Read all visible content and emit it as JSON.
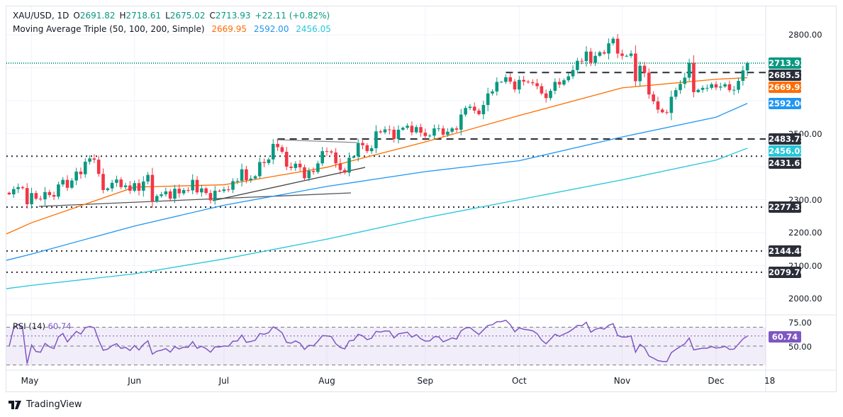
{
  "header": {
    "symbol": "XAU/USD, 1D",
    "open_label": "O",
    "open": "2691.82",
    "high_label": "H",
    "high": "2718.61",
    "low_label": "L",
    "low": "2675.02",
    "close_label": "C",
    "close": "2713.93",
    "change": "+22.11 (+0.82%)"
  },
  "indicator": {
    "name": "Moving Average Triple (50, 100, 200, Simple)",
    "ma50": "2669.95",
    "ma100": "2592.00",
    "ma200": "2456.05"
  },
  "colors": {
    "up": "#089981",
    "down": "#F23645",
    "ma50": "#FF6D00",
    "ma100": "#2196F3",
    "ma200": "#26C6DA",
    "rsi": "#7E57C2",
    "level": "#131722"
  },
  "price_axis": {
    "ticks": [
      "2800.00",
      "2500.00",
      "2300.00",
      "2200.00",
      "2100.00",
      "2000.00"
    ]
  },
  "price_tags": [
    {
      "value": "2713.93",
      "color": "#089981"
    },
    {
      "value": "2685.51",
      "color": "#2A2E39"
    },
    {
      "value": "2669.95",
      "color": "#FF6D00"
    },
    {
      "value": "2592.00",
      "color": "#2196F3"
    },
    {
      "value": "2483.75",
      "color": "#2A2E39"
    },
    {
      "value": "2456.05",
      "color": "#26C6DA"
    },
    {
      "value": "2431.61",
      "color": "#2A2E39"
    },
    {
      "value": "2277.31",
      "color": "#2A2E39"
    },
    {
      "value": "2144.48",
      "color": "#2A2E39"
    },
    {
      "value": "2079.76",
      "color": "#2A2E39"
    }
  ],
  "levels": [
    {
      "price": 2713.93,
      "style": "dotted",
      "color": "#089981"
    },
    {
      "price": 2685.51,
      "style": "dashed",
      "color": "#2A2E39"
    },
    {
      "price": 2483.75,
      "style": "dashed",
      "color": "#2A2E39"
    },
    {
      "price": 2431.61,
      "style": "dotted",
      "color": "#2A2E39"
    },
    {
      "price": 2277.31,
      "style": "dotted",
      "color": "#2A2E39"
    },
    {
      "price": 2144.48,
      "style": "dotted",
      "color": "#2A2E39"
    },
    {
      "price": 2079.76,
      "style": "dotted",
      "color": "#2A2E39"
    }
  ],
  "time_axis": [
    "May",
    "Jun",
    "Jul",
    "Aug",
    "Sep",
    "Oct",
    "Nov",
    "Dec",
    "18"
  ],
  "rsi": {
    "label": "RSI (14)",
    "value": "60.74",
    "ticks": [
      "75.00",
      "50.00"
    ],
    "levels": [
      70,
      50,
      30
    ],
    "range": [
      20,
      85
    ]
  },
  "branding": "TradingView",
  "chart_data": {
    "type": "candlestick",
    "symbol": "XAU/USD",
    "interval": "1D",
    "ylim": [
      1960,
      2830
    ],
    "closes_by_month": {
      "Apr": [
        2316,
        2332,
        2338,
        2335,
        2286
      ],
      "May": [
        2320,
        2303,
        2301,
        2323,
        2314,
        2309,
        2346,
        2360,
        2336,
        2358,
        2385,
        2377,
        2415,
        2425,
        2421,
        2378,
        2329,
        2334,
        2351,
        2361,
        2338,
        2343,
        2327
      ],
      "Jun": [
        2350,
        2327,
        2355,
        2375,
        2294,
        2311,
        2316,
        2325,
        2303,
        2333,
        2319,
        2329,
        2328,
        2360,
        2322,
        2334,
        2320,
        2298,
        2327,
        2326
      ],
      "Jul": [
        2331,
        2330,
        2356,
        2357,
        2392,
        2359,
        2364,
        2371,
        2414,
        2411,
        2422,
        2469,
        2459,
        2445,
        2400,
        2396,
        2409,
        2398,
        2365,
        2387,
        2384,
        2410,
        2447
      ],
      "Aug": [
        2446,
        2443,
        2410,
        2390,
        2382,
        2427,
        2431,
        2472,
        2465,
        2447,
        2456,
        2507,
        2504,
        2513,
        2512,
        2484,
        2512,
        2518,
        2524,
        2504,
        2520,
        2503
      ],
      "Sep": [
        2493,
        2494,
        2516,
        2516,
        2497,
        2506,
        2516,
        2512,
        2558,
        2578,
        2582,
        2570,
        2559,
        2587,
        2622,
        2628,
        2657,
        2657,
        2671,
        2658,
        2634
      ],
      "Oct": [
        2663,
        2658,
        2656,
        2653,
        2644,
        2622,
        2608,
        2630,
        2657,
        2649,
        2662,
        2674,
        2693,
        2721,
        2720,
        2749,
        2715,
        2736,
        2747,
        2743,
        2774,
        2788,
        2743
      ],
      "Nov": [
        2736,
        2736,
        2743,
        2659,
        2706,
        2685,
        2619,
        2598,
        2573,
        2565,
        2563,
        2612,
        2632,
        2651,
        2670,
        2715,
        2626,
        2633,
        2639,
        2639,
        2650
      ],
      "Dec": [
        2640,
        2643,
        2650,
        2632,
        2633,
        2660,
        2691.82,
        2713.93
      ]
    },
    "last_candle": {
      "open": 2691.82,
      "high": 2718.61,
      "low": 2675.02,
      "close": 2713.93
    },
    "moving_averages": {
      "ma50": {
        "Apr": 2196,
        "May": 2230,
        "Jun": 2338,
        "Jul": 2345,
        "Aug": 2398,
        "Sep": 2475,
        "Oct": 2555,
        "Nov": 2639,
        "Dec": 2665,
        "last": 2669.95
      },
      "ma100": {
        "Apr": 2116,
        "May": 2135,
        "Jun": 2220,
        "Jul": 2283,
        "Aug": 2340,
        "Sep": 2385,
        "Oct": 2418,
        "Nov": 2490,
        "Dec": 2550,
        "last": 2592.0
      },
      "ma200": {
        "Apr": 2030,
        "May": 2040,
        "Jun": 2075,
        "Jul": 2120,
        "Aug": 2180,
        "Sep": 2245,
        "Oct": 2300,
        "Nov": 2360,
        "Dec": 2420,
        "last": 2456.05
      }
    }
  }
}
